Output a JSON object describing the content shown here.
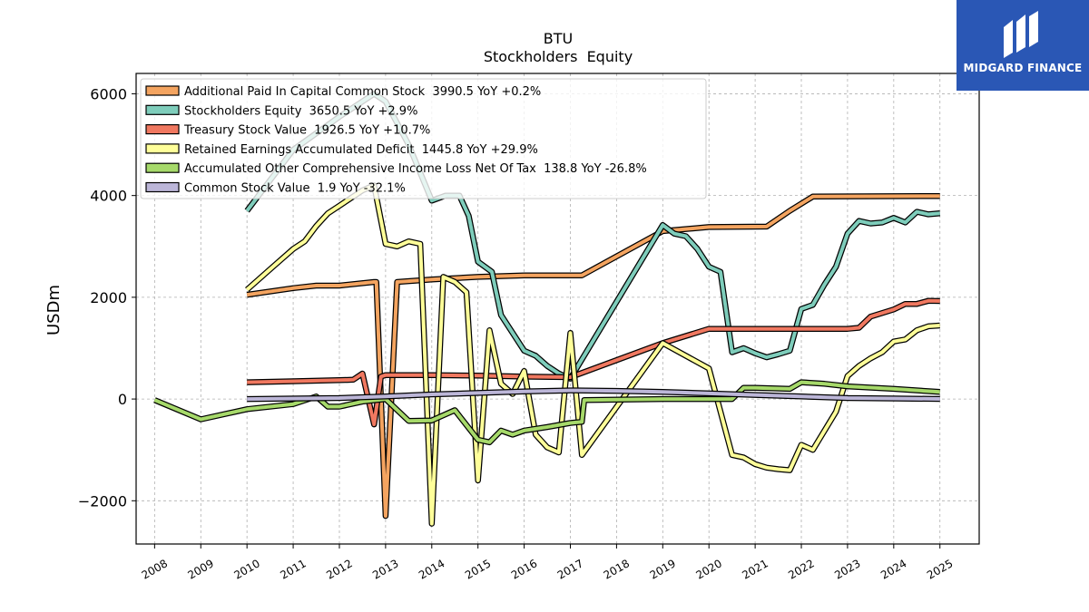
{
  "brand": {
    "name": "MIDGARD FINANCE",
    "color": "#2a57b5"
  },
  "chart_data": {
    "type": "line",
    "title": "BTU",
    "subtitle": "Stockholders  Equity",
    "ylabel": "USDm",
    "xlabel": "",
    "xlim": [
      2007.6,
      2025.85
    ],
    "ylim": [
      -2850,
      6400
    ],
    "x_ticks": [
      2008,
      2009,
      2010,
      2011,
      2012,
      2013,
      2014,
      2015,
      2016,
      2017,
      2018,
      2019,
      2020,
      2021,
      2022,
      2023,
      2024,
      2025
    ],
    "y_ticks": [
      -2000,
      0,
      2000,
      4000,
      6000
    ],
    "y_tick_labels": [
      "−2000",
      "0",
      "2000",
      "4000",
      "6000"
    ],
    "grid": true,
    "legend_position": "top-left",
    "series": [
      {
        "name": "Additional Paid In Capital Common Stock  3990.5 YoY +0.2%",
        "color": "#f4a460",
        "points": [
          [
            2010,
            2050
          ],
          [
            2011,
            2180
          ],
          [
            2011.5,
            2230
          ],
          [
            2012,
            2230
          ],
          [
            2012.75,
            2300
          ],
          [
            2012.8,
            2300
          ],
          [
            2013,
            -2300
          ],
          [
            2013.25,
            2300
          ],
          [
            2014,
            2350
          ],
          [
            2015,
            2400
          ],
          [
            2016,
            2430
          ],
          [
            2017.25,
            2430
          ],
          [
            2019,
            3300
          ],
          [
            2020,
            3380
          ],
          [
            2021.25,
            3390
          ],
          [
            2021.75,
            3700
          ],
          [
            2022.25,
            3980
          ],
          [
            2025,
            3990.5
          ]
        ]
      },
      {
        "name": "Stockholders Equity  3650.5 YoY +2.9%",
        "color": "#7ecdbb",
        "points": [
          [
            2010,
            3700
          ],
          [
            2010.5,
            4300
          ],
          [
            2011,
            4900
          ],
          [
            2012,
            5550
          ],
          [
            2012.75,
            6000
          ],
          [
            2013,
            5850
          ],
          [
            2013.5,
            5000
          ],
          [
            2014,
            3900
          ],
          [
            2014.3,
            4000
          ],
          [
            2014.6,
            4000
          ],
          [
            2014.8,
            3600
          ],
          [
            2015,
            2700
          ],
          [
            2015.3,
            2500
          ],
          [
            2015.5,
            1650
          ],
          [
            2016,
            950
          ],
          [
            2016.25,
            850
          ],
          [
            2016.5,
            650
          ],
          [
            2016.75,
            500
          ],
          [
            2017,
            400
          ],
          [
            2019,
            3420
          ],
          [
            2019.25,
            3250
          ],
          [
            2019.5,
            3200
          ],
          [
            2019.75,
            2950
          ],
          [
            2020,
            2600
          ],
          [
            2020.25,
            2500
          ],
          [
            2020.5,
            920
          ],
          [
            2020.75,
            1000
          ],
          [
            2021,
            900
          ],
          [
            2021.25,
            820
          ],
          [
            2021.5,
            880
          ],
          [
            2021.75,
            950
          ],
          [
            2022,
            1770
          ],
          [
            2022.25,
            1850
          ],
          [
            2022.5,
            2250
          ],
          [
            2022.75,
            2600
          ],
          [
            2023,
            3250
          ],
          [
            2023.25,
            3500
          ],
          [
            2023.5,
            3450
          ],
          [
            2023.75,
            3470
          ],
          [
            2024,
            3560
          ],
          [
            2024.25,
            3470
          ],
          [
            2024.5,
            3680
          ],
          [
            2024.75,
            3630
          ],
          [
            2025,
            3650.5
          ]
        ]
      },
      {
        "name": "Treasury Stock Value  1926.5 YoY +10.7%",
        "color": "#f07860",
        "points": [
          [
            2010,
            330
          ],
          [
            2011,
            350
          ],
          [
            2012,
            370
          ],
          [
            2012.3,
            380
          ],
          [
            2012.5,
            500
          ],
          [
            2012.75,
            -500
          ],
          [
            2012.9,
            440
          ],
          [
            2013,
            470
          ],
          [
            2014,
            470
          ],
          [
            2015,
            460
          ],
          [
            2016,
            440
          ],
          [
            2017,
            430
          ],
          [
            2019,
            1100
          ],
          [
            2020,
            1380
          ],
          [
            2021,
            1380
          ],
          [
            2022,
            1380
          ],
          [
            2023,
            1380
          ],
          [
            2023.25,
            1400
          ],
          [
            2023.5,
            1620
          ],
          [
            2024,
            1760
          ],
          [
            2024.25,
            1870
          ],
          [
            2024.5,
            1870
          ],
          [
            2024.75,
            1930
          ],
          [
            2025,
            1926.5
          ]
        ]
      },
      {
        "name": "Retained Earnings Accumulated Deficit  1445.8 YoY +29.9%",
        "color": "#ffff99",
        "points": [
          [
            2010,
            2150
          ],
          [
            2010.5,
            2550
          ],
          [
            2011,
            2950
          ],
          [
            2011.25,
            3100
          ],
          [
            2011.5,
            3400
          ],
          [
            2011.75,
            3650
          ],
          [
            2012,
            3800
          ],
          [
            2012.5,
            4100
          ],
          [
            2012.75,
            4200
          ],
          [
            2013,
            3050
          ],
          [
            2013.25,
            3000
          ],
          [
            2013.5,
            3100
          ],
          [
            2013.75,
            3050
          ],
          [
            2014,
            -2450
          ],
          [
            2014.25,
            2400
          ],
          [
            2014.5,
            2300
          ],
          [
            2014.75,
            2100
          ],
          [
            2015,
            -1600
          ],
          [
            2015.25,
            1350
          ],
          [
            2015.5,
            300
          ],
          [
            2015.75,
            100
          ],
          [
            2016,
            550
          ],
          [
            2016.25,
            -700
          ],
          [
            2016.5,
            -950
          ],
          [
            2016.75,
            -1050
          ],
          [
            2017,
            1300
          ],
          [
            2017.25,
            -1100
          ],
          [
            2019,
            1100
          ],
          [
            2020,
            600
          ],
          [
            2020.5,
            -1100
          ],
          [
            2020.75,
            -1150
          ],
          [
            2021,
            -1280
          ],
          [
            2021.25,
            -1350
          ],
          [
            2021.5,
            -1380
          ],
          [
            2021.75,
            -1400
          ],
          [
            2022,
            -900
          ],
          [
            2022.25,
            -1000
          ],
          [
            2022.75,
            -250
          ],
          [
            2023,
            450
          ],
          [
            2023.25,
            650
          ],
          [
            2023.5,
            800
          ],
          [
            2023.75,
            920
          ],
          [
            2024,
            1130
          ],
          [
            2024.25,
            1170
          ],
          [
            2024.5,
            1350
          ],
          [
            2024.75,
            1430
          ],
          [
            2025,
            1445.8
          ]
        ]
      },
      {
        "name": "Accumulated Other Comprehensive Income Loss Net Of Tax  138.8 YoY -26.8%",
        "color": "#a6d96a",
        "points": [
          [
            2008,
            -20
          ],
          [
            2009,
            -400
          ],
          [
            2010,
            -200
          ],
          [
            2011,
            -100
          ],
          [
            2011.5,
            50
          ],
          [
            2011.75,
            -150
          ],
          [
            2012,
            -150
          ],
          [
            2012.5,
            -50
          ],
          [
            2013,
            0
          ],
          [
            2013.5,
            -430
          ],
          [
            2014,
            -420
          ],
          [
            2014.5,
            -220
          ],
          [
            2015,
            -800
          ],
          [
            2015.25,
            -850
          ],
          [
            2015.5,
            -620
          ],
          [
            2015.75,
            -700
          ],
          [
            2016,
            -620
          ],
          [
            2016.5,
            -550
          ],
          [
            2017,
            -470
          ],
          [
            2017.25,
            -450
          ],
          [
            2017.3,
            -20
          ],
          [
            2019,
            0
          ],
          [
            2020,
            0
          ],
          [
            2020.5,
            0
          ],
          [
            2020.75,
            220
          ],
          [
            2021,
            220
          ],
          [
            2021.75,
            200
          ],
          [
            2022,
            330
          ],
          [
            2022.5,
            300
          ],
          [
            2023,
            250
          ],
          [
            2024,
            200
          ],
          [
            2025,
            138.8
          ]
        ]
      },
      {
        "name": "Common Stock Value  1.9 YoY -32.1%",
        "color": "#bcb6d8",
        "points": [
          [
            2010,
            0
          ],
          [
            2012,
            20
          ],
          [
            2013,
            50
          ],
          [
            2014,
            90
          ],
          [
            2015,
            120
          ],
          [
            2016,
            150
          ],
          [
            2017,
            170
          ],
          [
            2018,
            160
          ],
          [
            2019,
            140
          ],
          [
            2020,
            110
          ],
          [
            2021,
            80
          ],
          [
            2022,
            50
          ],
          [
            2023,
            20
          ],
          [
            2024,
            10
          ],
          [
            2025,
            1.9
          ]
        ]
      }
    ]
  }
}
